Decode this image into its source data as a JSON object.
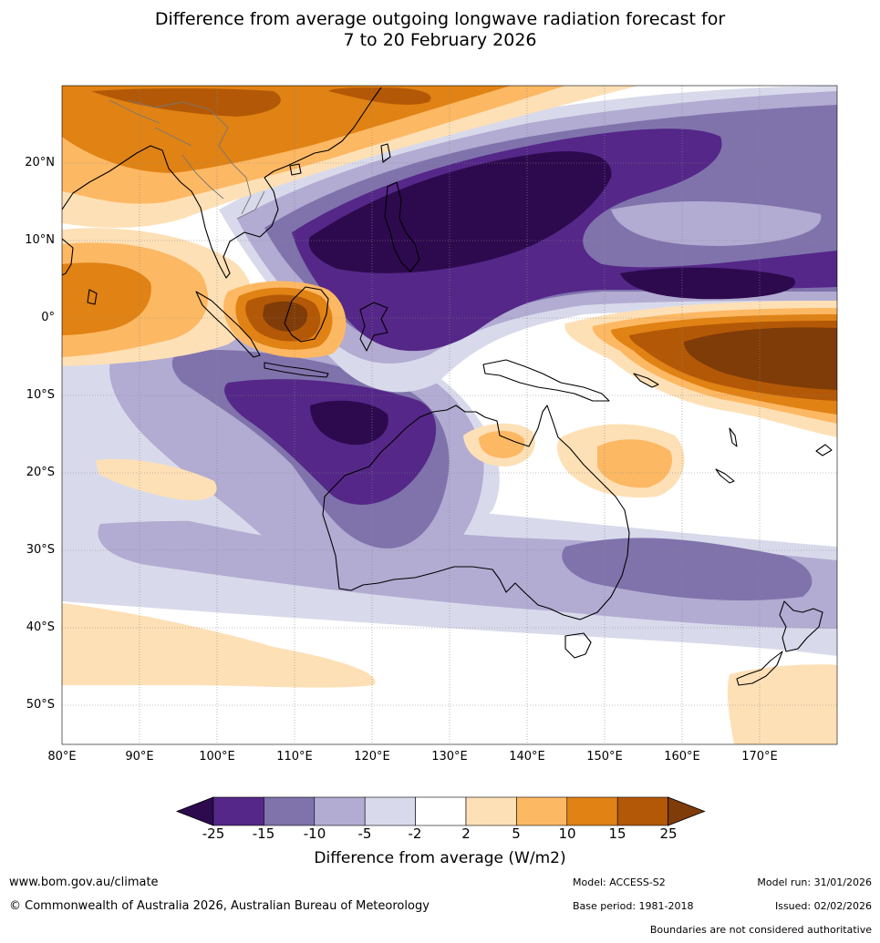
{
  "title": {
    "line1": "Difference from average outgoing longwave radiation forecast for",
    "line2": "7 to 20 February 2026"
  },
  "map": {
    "region": "Australia, Maritime Continent and western Pacific",
    "lat_labels": [
      "20°N",
      "10°N",
      "0°",
      "10°S",
      "20°S",
      "30°S",
      "40°S",
      "50°S"
    ],
    "lon_labels": [
      "80°E",
      "90°E",
      "100°E",
      "110°E",
      "120°E",
      "130°E",
      "140°E",
      "150°E",
      "160°E",
      "170°E"
    ],
    "extent": {
      "lon": [
        80,
        180
      ],
      "lat": [
        -55,
        30
      ]
    }
  },
  "legend": {
    "title": "Difference from average (W/m2)",
    "ticks": [
      "-25",
      "-15",
      "-10",
      "-5",
      "-2",
      "2",
      "5",
      "10",
      "15",
      "25"
    ],
    "colors": [
      "#2d0a4e",
      "#542788",
      "#8073ac",
      "#b2abd2",
      "#d8daeb",
      "#ffffff",
      "#fee0b6",
      "#fdb863",
      "#e08214",
      "#b35806",
      "#7f3b08"
    ]
  },
  "footer": {
    "website": "www.bom.gov.au/climate",
    "copyright": "© Commonwealth of Australia 2026, Australian Bureau of Meteorology",
    "model": "Model: ACCESS-S2",
    "model_run": "Model run: 31/01/2026",
    "base_period": "Base period: 1981-2018",
    "issued": "Issued: 02/02/2026",
    "disclaimer": "Boundaries are not considered authoritative"
  }
}
